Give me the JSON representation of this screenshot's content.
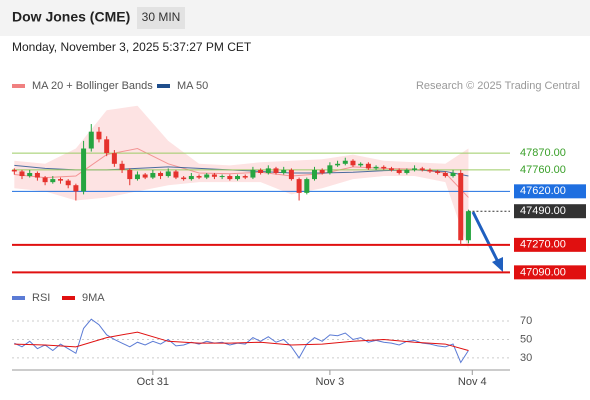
{
  "header": {
    "title": "Dow Jones (CME)",
    "timeframe": "30 MIN",
    "date": "Monday, November 3, 2025 5:37:27 PM CET"
  },
  "chart_data": [
    {
      "type": "candlestick",
      "credit": "Research © 2025 Trading Central",
      "up_color": "#26a541",
      "down_color": "#e5322d",
      "candles": [
        [
          47760,
          47770,
          47730,
          47750
        ],
        [
          47750,
          47760,
          47700,
          47720
        ],
        [
          47720,
          47760,
          47710,
          47740
        ],
        [
          47740,
          47750,
          47690,
          47710
        ],
        [
          47710,
          47720,
          47660,
          47680
        ],
        [
          47680,
          47720,
          47670,
          47700
        ],
        [
          47700,
          47710,
          47670,
          47690
        ],
        [
          47690,
          47700,
          47640,
          47660
        ],
        [
          47660,
          47670,
          47560,
          47620
        ],
        [
          47620,
          47950,
          47600,
          47900
        ],
        [
          47900,
          48060,
          47880,
          48010
        ],
        [
          48010,
          48040,
          47940,
          47960
        ],
        [
          47960,
          47980,
          47850,
          47870
        ],
        [
          47870,
          47890,
          47780,
          47800
        ],
        [
          47800,
          47820,
          47740,
          47760
        ],
        [
          47760,
          47770,
          47660,
          47700
        ],
        [
          47700,
          47750,
          47690,
          47730
        ],
        [
          47730,
          47740,
          47700,
          47710
        ],
        [
          47710,
          47760,
          47700,
          47740
        ],
        [
          47740,
          47750,
          47700,
          47720
        ],
        [
          47720,
          47770,
          47710,
          47750
        ],
        [
          47750,
          47760,
          47700,
          47710
        ],
        [
          47710,
          47720,
          47690,
          47700
        ],
        [
          47700,
          47740,
          47690,
          47720
        ],
        [
          47720,
          47730,
          47700,
          47710
        ],
        [
          47710,
          47740,
          47700,
          47730
        ],
        [
          47730,
          47740,
          47700,
          47715
        ],
        [
          47715,
          47730,
          47700,
          47720
        ],
        [
          47720,
          47730,
          47690,
          47700
        ],
        [
          47700,
          47730,
          47690,
          47720
        ],
        [
          47720,
          47730,
          47700,
          47710
        ],
        [
          47710,
          47780,
          47700,
          47760
        ],
        [
          47760,
          47770,
          47730,
          47740
        ],
        [
          47740,
          47790,
          47730,
          47770
        ],
        [
          47770,
          47780,
          47730,
          47740
        ],
        [
          47740,
          47780,
          47730,
          47760
        ],
        [
          47760,
          47770,
          47690,
          47700
        ],
        [
          47700,
          47710,
          47560,
          47610
        ],
        [
          47610,
          47710,
          47600,
          47700
        ],
        [
          47700,
          47780,
          47690,
          47760
        ],
        [
          47760,
          47770,
          47730,
          47740
        ],
        [
          47740,
          47810,
          47730,
          47790
        ],
        [
          47790,
          47820,
          47780,
          47800
        ],
        [
          47800,
          47840,
          47790,
          47820
        ],
        [
          47820,
          47830,
          47780,
          47790
        ],
        [
          47790,
          47810,
          47780,
          47800
        ],
        [
          47800,
          47810,
          47760,
          47770
        ],
        [
          47770,
          47790,
          47760,
          47780
        ],
        [
          47780,
          47790,
          47760,
          47770
        ],
        [
          47770,
          47780,
          47750,
          47760
        ],
        [
          47760,
          47770,
          47730,
          47740
        ],
        [
          47740,
          47770,
          47730,
          47760
        ],
        [
          47760,
          47790,
          47750,
          47770
        ],
        [
          47770,
          47780,
          47750,
          47760
        ],
        [
          47760,
          47770,
          47740,
          47750
        ],
        [
          47750,
          47760,
          47730,
          47740
        ],
        [
          47740,
          47750,
          47710,
          47720
        ],
        [
          47720,
          47760,
          47710,
          47740
        ],
        [
          47740,
          47760,
          47270,
          47300
        ],
        [
          47300,
          47500,
          47280,
          47490
        ]
      ],
      "series": [
        {
          "name": "MA 20 + Bollinger Bands",
          "color": "#f08080",
          "band_color": "#fde3e3",
          "x": [
            0,
            4,
            8,
            12,
            16,
            20,
            24,
            28,
            32,
            36,
            40,
            44,
            48,
            52,
            56,
            59
          ],
          "values": [
            47730,
            47710,
            47720,
            47860,
            47900,
            47800,
            47740,
            47735,
            47745,
            47720,
            47735,
            47780,
            47770,
            47765,
            47740,
            47580
          ],
          "upper": [
            47820,
            47800,
            47900,
            48150,
            48180,
            47950,
            47800,
            47790,
            47810,
            47820,
            47830,
            47860,
            47820,
            47810,
            47800,
            47900
          ],
          "lower": [
            47640,
            47620,
            47560,
            47580,
            47620,
            47660,
            47680,
            47680,
            47680,
            47600,
            47640,
            47700,
            47720,
            47720,
            47680,
            47240
          ]
        },
        {
          "name": "MA 50",
          "color": "#1f4e8c",
          "x": [
            0,
            4,
            8,
            12,
            16,
            20,
            24,
            28,
            32,
            36,
            40,
            44,
            48,
            52,
            56,
            59
          ],
          "values": [
            47790,
            47770,
            47760,
            47760,
            47770,
            47780,
            47770,
            47760,
            47750,
            47740,
            47740,
            47745,
            47755,
            47760,
            47750,
            47720
          ]
        }
      ],
      "levels": [
        {
          "value": 47870,
          "label": "47870.00",
          "color": "#9ccc65",
          "text_color": "#3aa02a",
          "style": "thin",
          "box": false
        },
        {
          "value": 47760,
          "label": "47760.00",
          "color": "#9ccc65",
          "text_color": "#3aa02a",
          "style": "thin",
          "box": false
        },
        {
          "value": 47620,
          "label": "47620.00",
          "color": "#1f6fe0",
          "text_color": "#ffffff",
          "style": "thin",
          "box": true
        },
        {
          "value": 47490,
          "label": "47490.00",
          "color": "#333333",
          "text_color": "#ffffff",
          "style": "dotted",
          "box": true
        },
        {
          "value": 47270,
          "label": "47270.00",
          "color": "#e01010",
          "text_color": "#ffffff",
          "style": "thick",
          "box": true
        },
        {
          "value": 47090,
          "label": "47090.00",
          "color": "#e01010",
          "text_color": "#ffffff",
          "style": "thick",
          "box": true
        }
      ],
      "xlim": [
        -0.3,
        64.4
      ],
      "ylim": [
        47040,
        48250
      ]
    },
    {
      "type": "line",
      "series": [
        {
          "name": "RSI",
          "color": "#5b7bd5",
          "x": [
            0,
            1,
            2,
            3,
            4,
            5,
            6,
            7,
            8,
            9,
            10,
            11,
            12,
            13,
            14,
            15,
            16,
            17,
            18,
            19,
            20,
            21,
            22,
            23,
            24,
            25,
            26,
            27,
            28,
            29,
            30,
            31,
            32,
            33,
            34,
            35,
            36,
            37,
            38,
            39,
            40,
            41,
            42,
            43,
            44,
            45,
            46,
            47,
            48,
            49,
            50,
            51,
            52,
            53,
            54,
            55,
            56,
            57,
            58,
            59
          ],
          "values": [
            46,
            42,
            48,
            40,
            44,
            38,
            45,
            40,
            35,
            62,
            72,
            66,
            55,
            50,
            46,
            42,
            47,
            44,
            48,
            45,
            50,
            43,
            44,
            47,
            45,
            48,
            46,
            47,
            44,
            46,
            45,
            52,
            48,
            53,
            47,
            50,
            42,
            30,
            45,
            52,
            48,
            55,
            54,
            57,
            50,
            52,
            47,
            49,
            47,
            46,
            44,
            48,
            49,
            46,
            45,
            43,
            42,
            45,
            25,
            38
          ]
        },
        {
          "name": "9MA",
          "color": "#e01010",
          "x": [
            0,
            4,
            8,
            12,
            16,
            20,
            24,
            28,
            32,
            36,
            40,
            44,
            48,
            52,
            56,
            59
          ],
          "values": [
            45,
            44,
            42,
            52,
            58,
            48,
            46,
            46,
            47,
            44,
            45,
            48,
            50,
            47,
            45,
            38
          ]
        }
      ],
      "xlim": [
        -0.3,
        64.4
      ],
      "ylim": [
        19,
        82
      ],
      "yticks": [
        70,
        50,
        30
      ],
      "grid": true,
      "xticks": [
        {
          "value": 18,
          "label": "Oct 31"
        },
        {
          "value": 41,
          "label": "Nov 3"
        },
        {
          "value": 59.5,
          "label": "Nov 4"
        }
      ]
    }
  ]
}
